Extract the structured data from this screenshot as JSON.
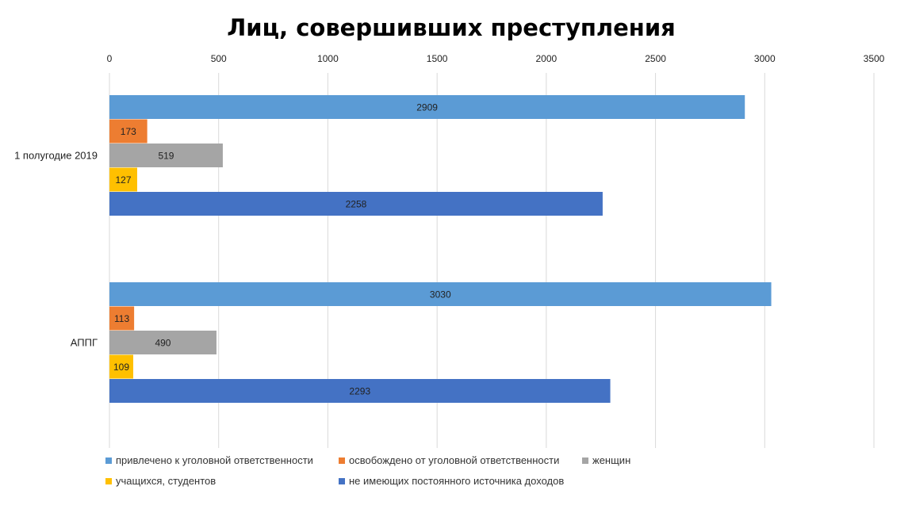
{
  "chart_data": {
    "type": "bar",
    "orientation": "horizontal",
    "title": "Лиц, совершивших преступления",
    "categories": [
      "1 полугодие 2019",
      "АППГ"
    ],
    "xlim": [
      0,
      3500
    ],
    "xticks": [
      "0",
      "500",
      "1000",
      "1500",
      "2000",
      "2500",
      "3000",
      "3500"
    ],
    "grid": true,
    "legend_position": "bottom",
    "series": [
      {
        "name": "привлечено к уголовной ответственности",
        "values": [
          2909,
          3030
        ],
        "labels": [
          "2909",
          "3030"
        ],
        "color": "#5B9BD5"
      },
      {
        "name": "освобождено от уголовной ответственности",
        "values": [
          173,
          113
        ],
        "labels": [
          "173",
          "113"
        ],
        "color": "#ED7D31"
      },
      {
        "name": "женщин",
        "values": [
          519,
          490
        ],
        "labels": [
          "519",
          "490"
        ],
        "color": "#A5A5A5"
      },
      {
        "name": "учащихся, студентов",
        "values": [
          127,
          109
        ],
        "labels": [
          "127",
          "109"
        ],
        "color": "#FFC000"
      },
      {
        "name": "не имеющих постоянного источника доходов",
        "values": [
          2258,
          2293
        ],
        "labels": [
          "2258",
          "2293"
        ],
        "color": "#4472C4"
      }
    ]
  }
}
